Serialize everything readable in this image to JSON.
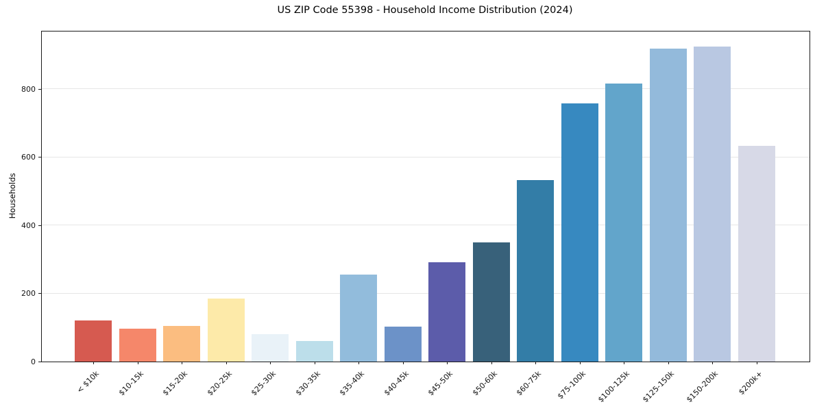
{
  "chart_data": {
    "type": "bar",
    "title": "US ZIP Code 55398 - Household Income Distribution (2024)",
    "xlabel": "",
    "ylabel": "Households",
    "categories": [
      "< $10k",
      "$10-15k",
      "$15-20k",
      "$20-25k",
      "$25-30k",
      "$30-35k",
      "$35-40k",
      "$40-45k",
      "$45-50k",
      "$50-60k",
      "$60-75k",
      "$75-100k",
      "$100-125k",
      "$125-150k",
      "$150-200k",
      "$200k+"
    ],
    "values": [
      120,
      96,
      104,
      185,
      80,
      60,
      255,
      103,
      291,
      350,
      533,
      759,
      818,
      920,
      926,
      634
    ],
    "bar_colors": [
      "#d65a50",
      "#f5876a",
      "#fbbd80",
      "#fdeaa9",
      "#e9f2f8",
      "#bcdeea",
      "#92bcdc",
      "#6c92c8",
      "#5c5caa",
      "#38617a",
      "#337da7",
      "#3789c0",
      "#62a5cb",
      "#93badb",
      "#b9c8e2",
      "#d7d9e7"
    ],
    "ylim": [
      0,
      970
    ],
    "yticks": [
      0,
      200,
      400,
      600,
      800
    ],
    "x_tick_rotation": 45,
    "grid": "horizontal",
    "gridline_color": "#e6e6e6",
    "spine_color": "#1a1a1a",
    "background_color": "#ffffff",
    "legend": "none"
  }
}
